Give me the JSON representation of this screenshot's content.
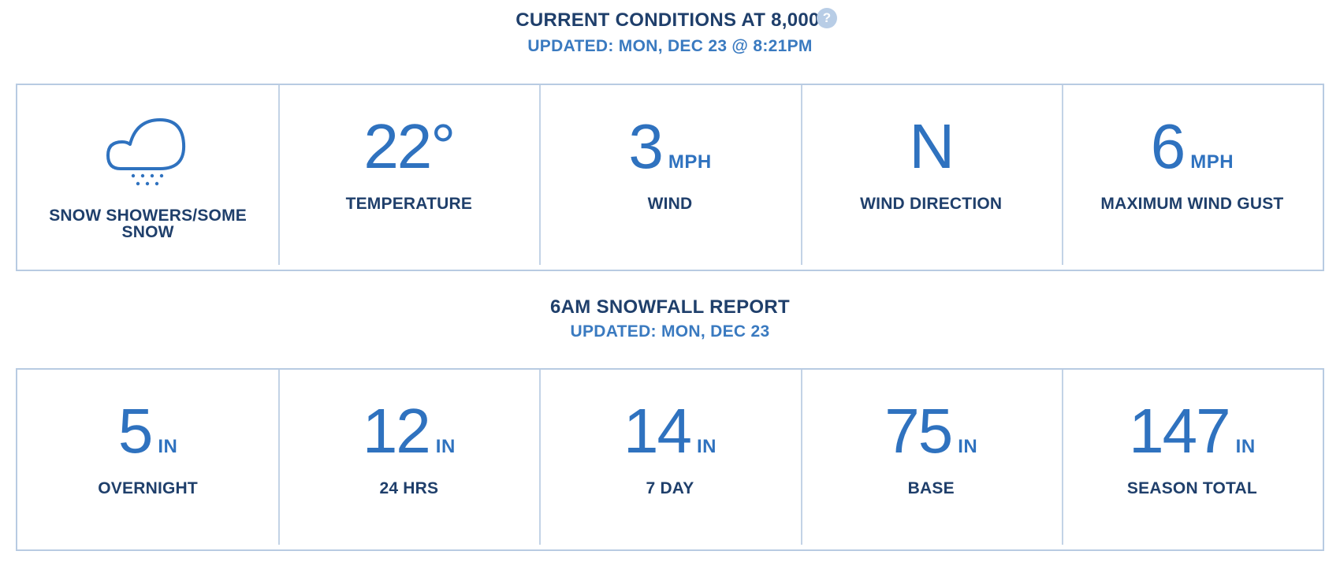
{
  "conditions": {
    "title": "CURRENT CONDITIONS AT 8,000′",
    "help_icon_glyph": "?",
    "updated": "UPDATED: MON, DEC 23 @ 8:21PM",
    "weather_icon": "snow-cloud-icon",
    "weather_label": "SNOW SHOWERS/SOME SNOW",
    "temperature": {
      "value": "22°",
      "label": "TEMPERATURE"
    },
    "wind": {
      "value": "3",
      "unit": "MPH",
      "label": "WIND"
    },
    "wind_direction": {
      "value": "N",
      "label": "WIND DIRECTION"
    },
    "max_gust": {
      "value": "6",
      "unit": "MPH",
      "label": "MAXIMUM WIND GUST"
    }
  },
  "snowfall": {
    "title": "6AM SNOWFALL REPORT",
    "updated": "UPDATED: MON, DEC 23",
    "items": [
      {
        "value": "5",
        "unit": "IN",
        "label": "OVERNIGHT"
      },
      {
        "value": "12",
        "unit": "IN",
        "label": "24 HRS"
      },
      {
        "value": "14",
        "unit": "IN",
        "label": "7 DAY"
      },
      {
        "value": "75",
        "unit": "IN",
        "label": "BASE"
      },
      {
        "value": "147",
        "unit": "IN",
        "label": "SEASON TOTAL"
      }
    ]
  },
  "colors": {
    "heading": "#1f3f6b",
    "accent": "#2f72bf",
    "border": "#b8cbe2",
    "help_icon": "#b8cde6"
  }
}
